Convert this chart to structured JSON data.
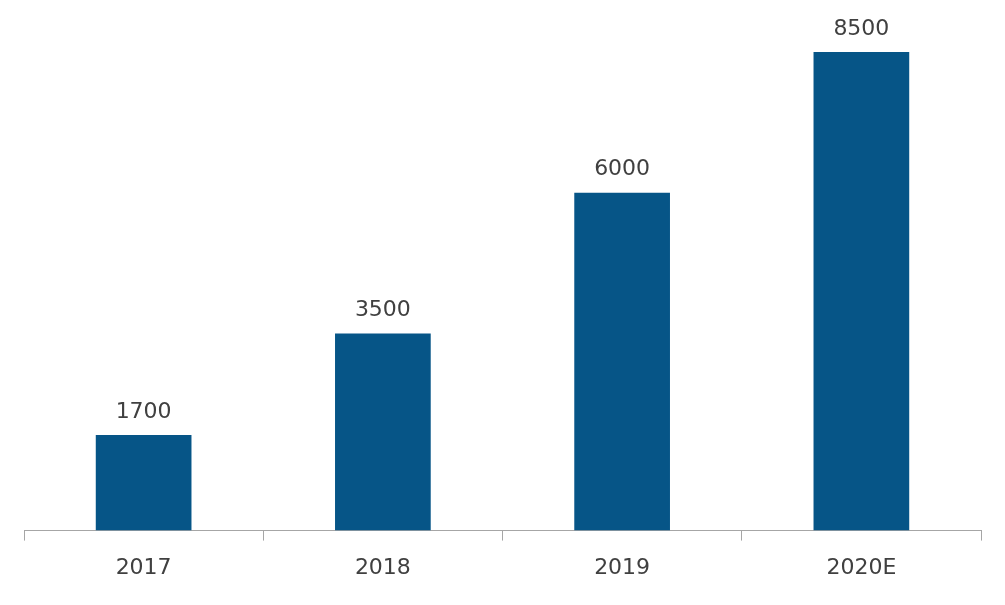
{
  "chart_data": {
    "type": "bar",
    "categories": [
      "2017",
      "2018",
      "2019",
      "2020E"
    ],
    "values": [
      1700,
      3500,
      6000,
      8500
    ],
    "color": "#065587",
    "data_labels": true
  }
}
